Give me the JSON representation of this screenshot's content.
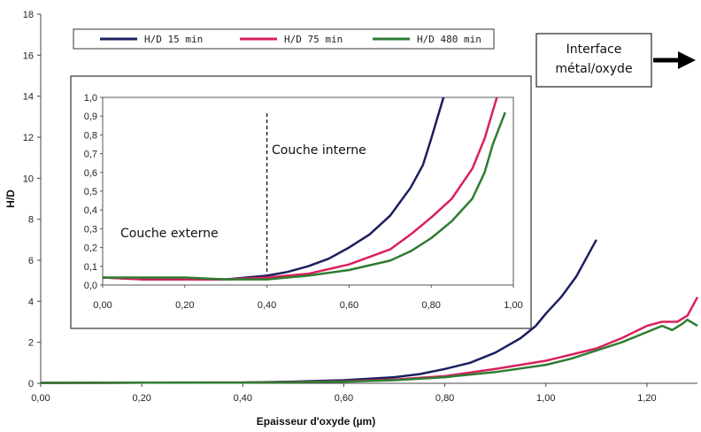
{
  "chart_data": [
    {
      "type": "line",
      "title": "",
      "xlabel": "Epaisseur d'oxyde (µm)",
      "ylabel": "H/D",
      "xlim": [
        0,
        1.3
      ],
      "ylim": [
        0,
        18
      ],
      "xticks": [
        "0,00",
        "0,20",
        "0,40",
        "0,60",
        "0,80",
        "1,00",
        "1,20"
      ],
      "yticks": [
        "0",
        "2",
        "4",
        "6",
        "8",
        "10",
        "12",
        "14",
        "16",
        "18"
      ],
      "grid": false,
      "legend_position": "top-left",
      "series": [
        {
          "name": "H/D 15 min",
          "color": "#1b1f5e",
          "points": [
            [
              0,
              0.02
            ],
            [
              0.2,
              0.03
            ],
            [
              0.4,
              0.04
            ],
            [
              0.5,
              0.08
            ],
            [
              0.6,
              0.15
            ],
            [
              0.7,
              0.3
            ],
            [
              0.75,
              0.45
            ],
            [
              0.8,
              0.7
            ],
            [
              0.85,
              1.0
            ],
            [
              0.9,
              1.5
            ],
            [
              0.95,
              2.2
            ],
            [
              0.98,
              2.8
            ],
            [
              1.0,
              3.4
            ],
            [
              1.03,
              4.2
            ],
            [
              1.06,
              5.2
            ],
            [
              1.08,
              6.1
            ],
            [
              1.1,
              7.0
            ]
          ]
        },
        {
          "name": "H/D 75 min",
          "color": "#d9205a",
          "points": [
            [
              0,
              0.02
            ],
            [
              0.2,
              0.03
            ],
            [
              0.4,
              0.04
            ],
            [
              0.5,
              0.06
            ],
            [
              0.6,
              0.1
            ],
            [
              0.7,
              0.18
            ],
            [
              0.8,
              0.35
            ],
            [
              0.9,
              0.7
            ],
            [
              1.0,
              1.1
            ],
            [
              1.05,
              1.4
            ],
            [
              1.1,
              1.7
            ],
            [
              1.15,
              2.2
            ],
            [
              1.2,
              2.8
            ],
            [
              1.23,
              3.0
            ],
            [
              1.26,
              3.0
            ],
            [
              1.28,
              3.3
            ],
            [
              1.3,
              4.2
            ]
          ]
        },
        {
          "name": "H/D 480 min",
          "color": "#2e7d32",
          "points": [
            [
              0,
              0.02
            ],
            [
              0.2,
              0.03
            ],
            [
              0.4,
              0.03
            ],
            [
              0.5,
              0.05
            ],
            [
              0.6,
              0.08
            ],
            [
              0.7,
              0.15
            ],
            [
              0.8,
              0.3
            ],
            [
              0.9,
              0.55
            ],
            [
              1.0,
              0.9
            ],
            [
              1.05,
              1.2
            ],
            [
              1.1,
              1.6
            ],
            [
              1.15,
              2.0
            ],
            [
              1.2,
              2.5
            ],
            [
              1.23,
              2.8
            ],
            [
              1.25,
              2.6
            ],
            [
              1.27,
              2.9
            ],
            [
              1.28,
              3.1
            ],
            [
              1.3,
              2.8
            ]
          ]
        }
      ],
      "annotation": "Interface\nmétal/oxyde"
    },
    {
      "type": "line",
      "title": "",
      "xlim": [
        0,
        1.0
      ],
      "ylim": [
        0,
        1.0
      ],
      "xticks": [
        "0,00",
        "0,20",
        "0,40",
        "0,60",
        "0,80",
        "1,00"
      ],
      "yticks": [
        "0,0",
        "0,1",
        "0,2",
        "0,3",
        "0,4",
        "0,5",
        "0,6",
        "0,7",
        "0,8",
        "0,9",
        "1,0"
      ],
      "divider_x": 0.4,
      "labels": [
        "Couche externe",
        "Couche interne"
      ],
      "series": [
        {
          "name": "H/D 15 min",
          "color": "#1b1f5e",
          "points": [
            [
              0,
              0.04
            ],
            [
              0.1,
              0.03
            ],
            [
              0.2,
              0.03
            ],
            [
              0.3,
              0.03
            ],
            [
              0.4,
              0.05
            ],
            [
              0.45,
              0.07
            ],
            [
              0.5,
              0.1
            ],
            [
              0.55,
              0.14
            ],
            [
              0.6,
              0.2
            ],
            [
              0.65,
              0.27
            ],
            [
              0.7,
              0.37
            ],
            [
              0.75,
              0.52
            ],
            [
              0.78,
              0.64
            ],
            [
              0.8,
              0.78
            ],
            [
              0.83,
              1.0
            ]
          ]
        },
        {
          "name": "H/D 75 min",
          "color": "#d9205a",
          "points": [
            [
              0,
              0.04
            ],
            [
              0.1,
              0.03
            ],
            [
              0.2,
              0.03
            ],
            [
              0.3,
              0.03
            ],
            [
              0.4,
              0.04
            ],
            [
              0.5,
              0.06
            ],
            [
              0.6,
              0.11
            ],
            [
              0.7,
              0.19
            ],
            [
              0.75,
              0.27
            ],
            [
              0.8,
              0.36
            ],
            [
              0.85,
              0.46
            ],
            [
              0.9,
              0.62
            ],
            [
              0.93,
              0.78
            ],
            [
              0.96,
              1.0
            ]
          ]
        },
        {
          "name": "H/D 480 min",
          "color": "#2e7d32",
          "points": [
            [
              0,
              0.04
            ],
            [
              0.1,
              0.04
            ],
            [
              0.2,
              0.04
            ],
            [
              0.3,
              0.03
            ],
            [
              0.4,
              0.03
            ],
            [
              0.5,
              0.05
            ],
            [
              0.6,
              0.08
            ],
            [
              0.7,
              0.13
            ],
            [
              0.75,
              0.18
            ],
            [
              0.8,
              0.25
            ],
            [
              0.85,
              0.34
            ],
            [
              0.9,
              0.46
            ],
            [
              0.93,
              0.6
            ],
            [
              0.95,
              0.75
            ],
            [
              0.98,
              0.92
            ]
          ]
        }
      ]
    }
  ]
}
